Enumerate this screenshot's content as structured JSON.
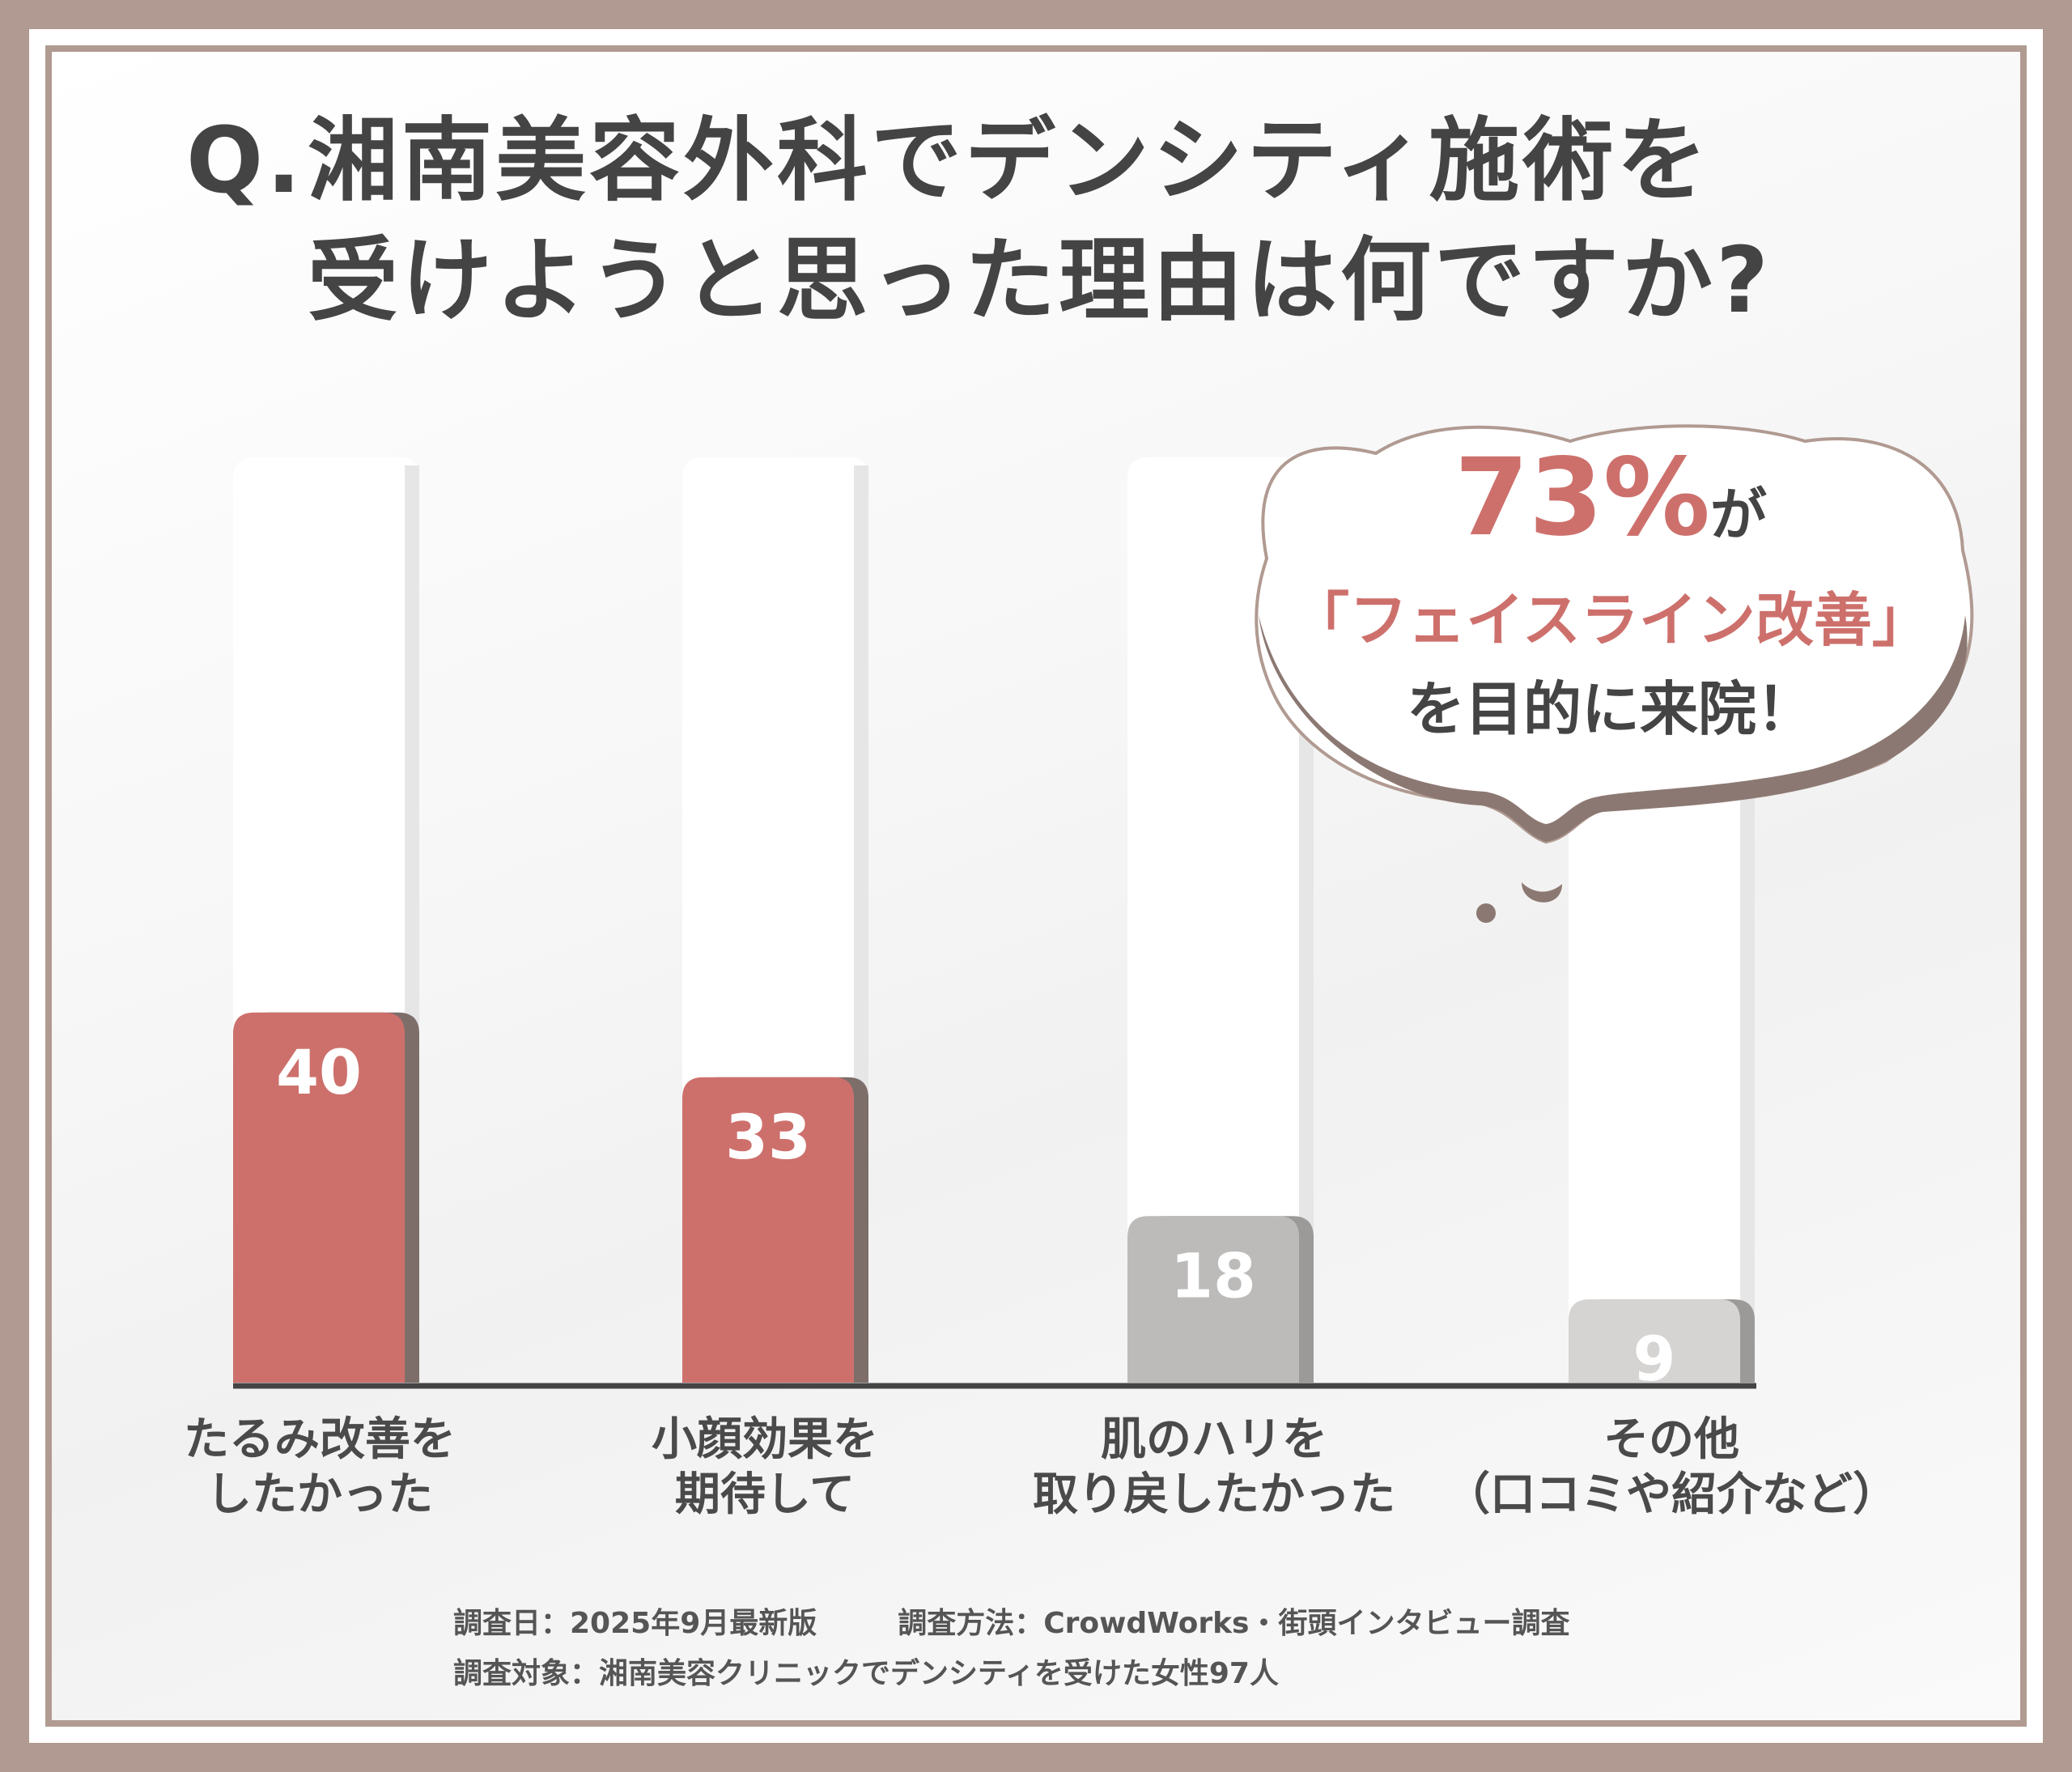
{
  "title": {
    "q": "Q.",
    "line1": "湘南美容外科でデンシティ施術を",
    "line2": "受けようと思った理由は何ですか?"
  },
  "callout": {
    "percent": "73%",
    "particle": "が",
    "line2": "「フェイスライン改善」",
    "line3": "を目的に来院！"
  },
  "chart_data": {
    "type": "bar",
    "categories": [
      "たるみ改善を\nしたかった",
      "小顔効果を\n期待して",
      "肌のハリを\n取り戻したかった",
      "その他\n（口コミや紹介など）"
    ],
    "values": [
      40,
      33,
      18,
      9
    ],
    "data_labels": [
      "40",
      "33",
      "18",
      "9"
    ],
    "ylim": [
      0,
      100
    ],
    "colors": {
      "highlight": "#cd706c",
      "highlight_side": "#7d6e6a",
      "muted": "#bdbbba",
      "muted_side": "#9b9a99",
      "muted_light": "#d6d4d3",
      "axis": "#444444"
    },
    "highlight_indices": [
      0,
      1
    ],
    "grid": false,
    "legend": "none"
  },
  "footnotes": {
    "date": "調査日：2025年9月最新版",
    "method": "調査方法：CrowdWorks・街頭インタビュー調査",
    "target": "調査対象：湘南美容クリニックでデンシティを受けた女性97人"
  }
}
